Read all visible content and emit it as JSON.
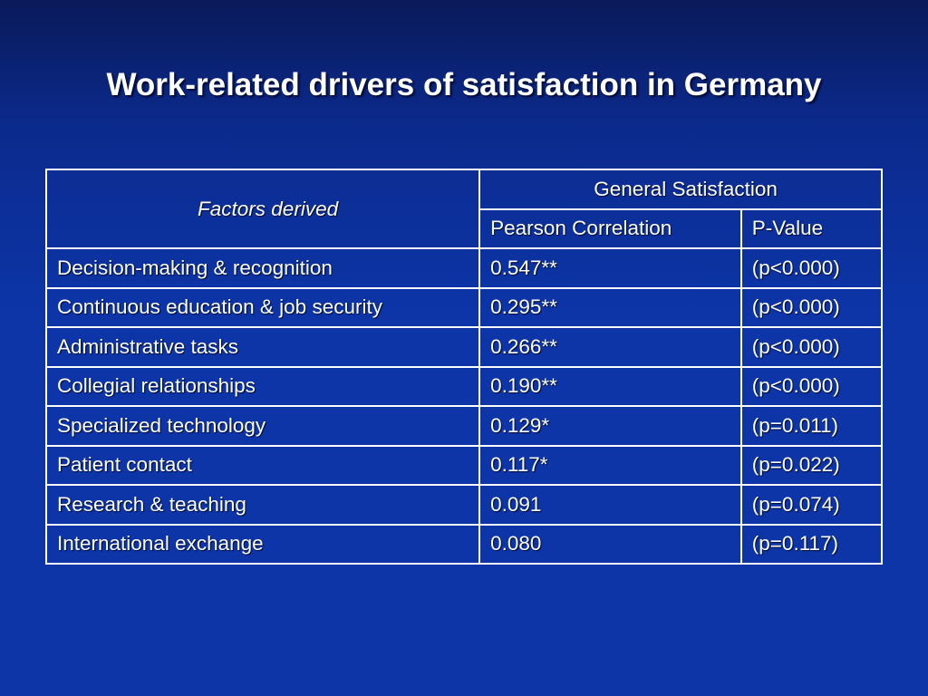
{
  "title": "Work-related drivers of satisfaction in Germany",
  "table": {
    "header": {
      "factors": "Factors derived",
      "general": "General Satisfaction",
      "pearson": "Pearson Correlation",
      "pvalue": "P-Value"
    },
    "rows": [
      {
        "factor": "Decision-making & recognition",
        "correlation": "0.547**",
        "p": "(p<0.000)"
      },
      {
        "factor": "Continuous education & job security",
        "correlation": "0.295**",
        "p": "(p<0.000)"
      },
      {
        "factor": "Administrative tasks",
        "correlation": "0.266**",
        "p": "(p<0.000)"
      },
      {
        "factor": "Collegial relationships",
        "correlation": "0.190**",
        "p": "(p<0.000)"
      },
      {
        "factor": "Specialized technology",
        "correlation": "0.129*",
        "p": "(p=0.011)"
      },
      {
        "factor": "Patient contact",
        "correlation": "0.117*",
        "p": "(p=0.022)"
      },
      {
        "factor": "Research & teaching",
        "correlation": "0.091",
        "p": "(p=0.074)"
      },
      {
        "factor": "International exchange",
        "correlation": "0.080",
        "p": "(p=0.117)"
      }
    ]
  }
}
